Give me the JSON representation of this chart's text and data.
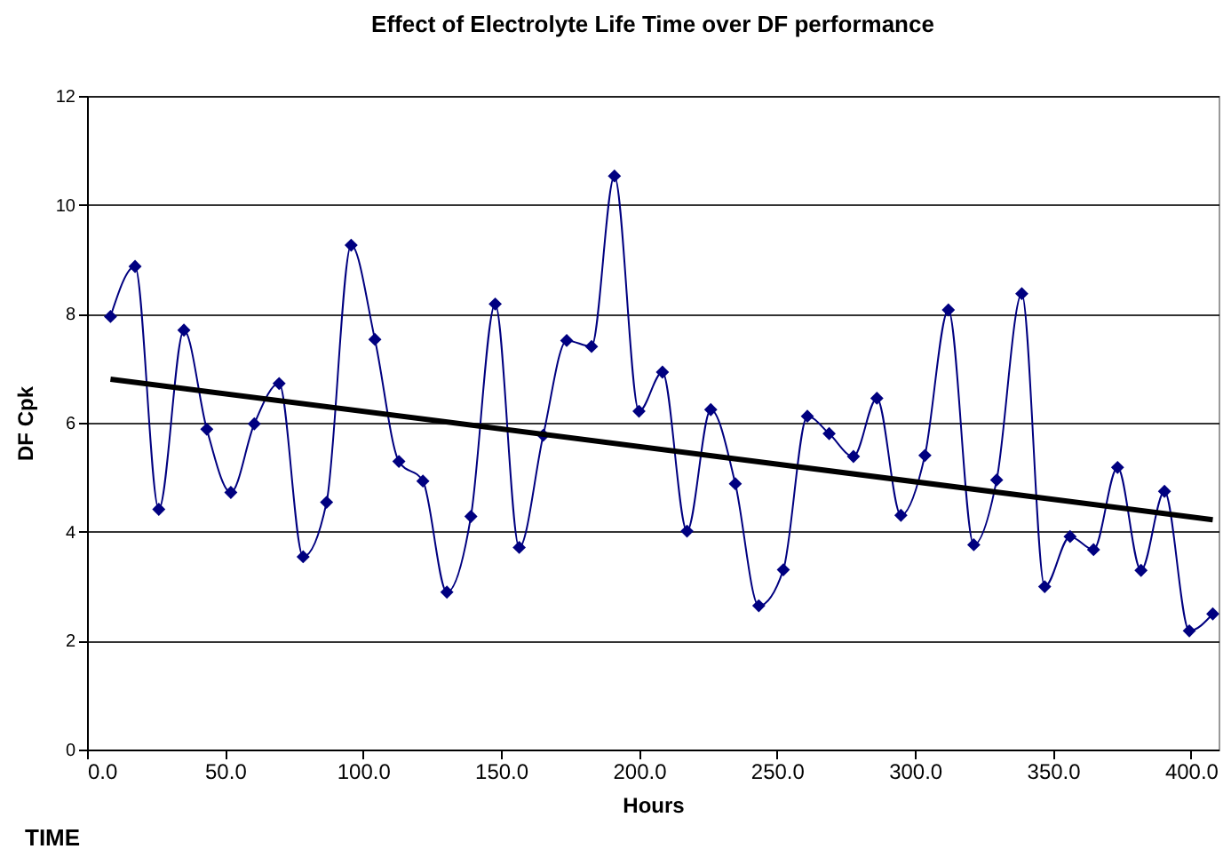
{
  "chart_data": {
    "type": "line",
    "title": "Effect of Electrolyte Life Time over DF performance",
    "xlabel": "Hours",
    "ylabel": "DF Cpk",
    "annotations": [
      "TIME"
    ],
    "xlim": [
      0,
      410
    ],
    "ylim": [
      0,
      12
    ],
    "xticks": [
      {
        "value": 0,
        "label": "0.0"
      },
      {
        "value": 50,
        "label": "50.0"
      },
      {
        "value": 100,
        "label": "100.0"
      },
      {
        "value": 150,
        "label": "150.0"
      },
      {
        "value": 200,
        "label": "200.0"
      },
      {
        "value": 250,
        "label": "250.0"
      },
      {
        "value": 300,
        "label": "300.0"
      },
      {
        "value": 350,
        "label": "350.0"
      },
      {
        "value": 400,
        "label": "400.0"
      }
    ],
    "yticks": [
      0,
      2,
      4,
      6,
      8,
      10,
      12
    ],
    "grid": "y",
    "series": [
      {
        "color": "#000080",
        "marker": "diamond",
        "x": [
          8.5,
          17.4,
          26,
          35.1,
          43.4,
          52.1,
          60.6,
          69.6,
          78.3,
          86.8,
          95.7,
          104.3,
          113,
          121.7,
          130.4,
          139.1,
          147.9,
          156.6,
          165.3,
          173.8,
          182.8,
          191.1,
          200,
          208.5,
          217.4,
          226,
          234.9,
          243.4,
          252.3,
          261,
          268.9,
          277.7,
          286.2,
          294.9,
          303.6,
          312.1,
          321.3,
          329.6,
          338.7,
          347,
          356.2,
          364.7,
          373.4,
          381.9,
          390.4,
          399.4,
          407.9
        ],
        "values": [
          7.95,
          8.87,
          4.41,
          7.7,
          5.88,
          4.72,
          5.98,
          6.72,
          3.54,
          4.54,
          9.26,
          7.53,
          5.29,
          4.93,
          2.89,
          4.28,
          8.18,
          3.71,
          5.77,
          7.51,
          7.4,
          10.53,
          6.21,
          6.93,
          4.01,
          6.24,
          4.88,
          2.64,
          3.3,
          6.12,
          5.8,
          5.38,
          6.45,
          4.3,
          5.4,
          8.07,
          3.76,
          4.95,
          8.37,
          2.99,
          3.91,
          3.67,
          5.18,
          3.29,
          4.74,
          2.18,
          2.49
        ]
      },
      {
        "color": "#000000",
        "marker": "none",
        "x": [
          8.5,
          407.9
        ],
        "values": [
          6.8,
          4.22
        ]
      }
    ]
  }
}
